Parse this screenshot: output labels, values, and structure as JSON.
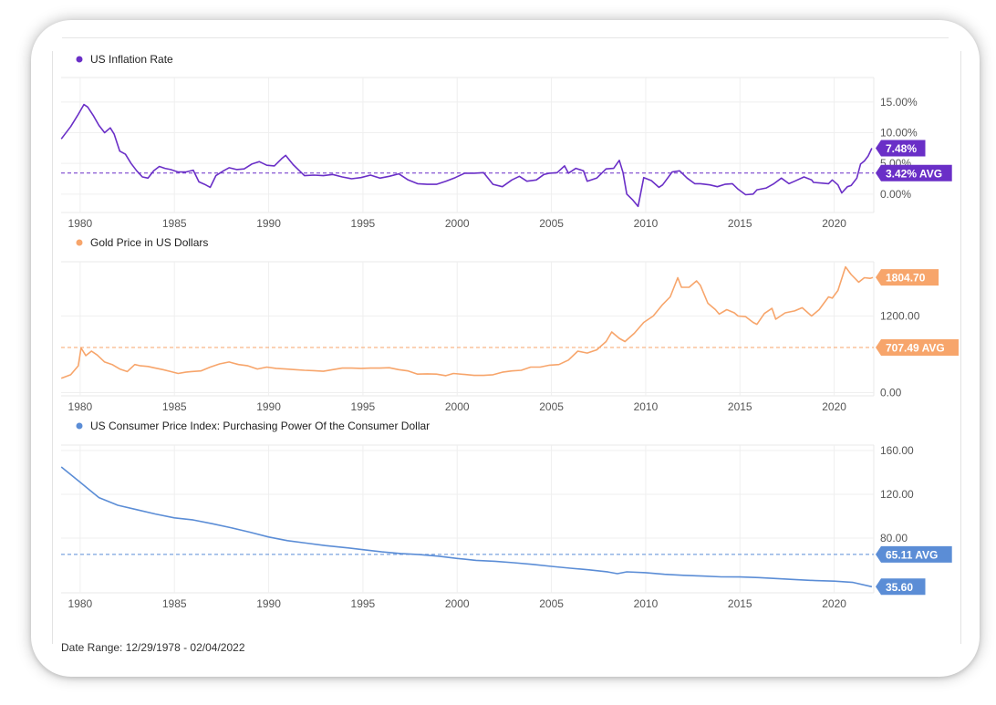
{
  "footer": {
    "date_range": "Date Range: 12/29/1978 - 02/04/2022"
  },
  "chart_data": [
    {
      "type": "line",
      "legend": "US Inflation Rate",
      "color": "#6a2fc7",
      "x_ticks": [
        "1980",
        "1985",
        "1990",
        "1995",
        "2000",
        "2005",
        "2010",
        "2015",
        "2020"
      ],
      "y_ticks": [
        "15.00%",
        "10.00%",
        "5.00%",
        "0.00%"
      ],
      "y_tick_values": [
        15,
        10,
        5,
        0
      ],
      "ylim": [
        -3,
        19
      ],
      "xlim": [
        1978.99,
        2022.1
      ],
      "grid": true,
      "avg": 3.42,
      "avg_label": "3.42% AVG",
      "last_label": "7.48%",
      "points": [
        [
          1979.0,
          9.0
        ],
        [
          1979.5,
          11.0
        ],
        [
          1979.9,
          13.0
        ],
        [
          1980.2,
          14.6
        ],
        [
          1980.4,
          14.2
        ],
        [
          1980.7,
          12.8
        ],
        [
          1981.0,
          11.2
        ],
        [
          1981.3,
          10.0
        ],
        [
          1981.6,
          10.8
        ],
        [
          1981.8,
          9.8
        ],
        [
          1982.1,
          7.0
        ],
        [
          1982.4,
          6.5
        ],
        [
          1982.7,
          5.0
        ],
        [
          1983.0,
          3.8
        ],
        [
          1983.3,
          2.8
        ],
        [
          1983.6,
          2.6
        ],
        [
          1983.9,
          3.8
        ],
        [
          1984.2,
          4.5
        ],
        [
          1984.5,
          4.2
        ],
        [
          1984.8,
          4.0
        ],
        [
          1985.2,
          3.6
        ],
        [
          1985.6,
          3.6
        ],
        [
          1986.0,
          3.9
        ],
        [
          1986.3,
          2.0
        ],
        [
          1986.6,
          1.6
        ],
        [
          1986.9,
          1.1
        ],
        [
          1987.2,
          3.0
        ],
        [
          1987.6,
          3.8
        ],
        [
          1987.9,
          4.3
        ],
        [
          1988.3,
          4.0
        ],
        [
          1988.7,
          4.1
        ],
        [
          1989.1,
          4.9
        ],
        [
          1989.5,
          5.3
        ],
        [
          1989.9,
          4.7
        ],
        [
          1990.3,
          4.6
        ],
        [
          1990.7,
          5.8
        ],
        [
          1990.9,
          6.3
        ],
        [
          1991.3,
          4.8
        ],
        [
          1991.6,
          3.9
        ],
        [
          1991.9,
          3.0
        ],
        [
          1992.4,
          3.1
        ],
        [
          1992.9,
          3.0
        ],
        [
          1993.4,
          3.2
        ],
        [
          1993.9,
          2.8
        ],
        [
          1994.4,
          2.5
        ],
        [
          1994.9,
          2.7
        ],
        [
          1995.4,
          3.1
        ],
        [
          1995.9,
          2.6
        ],
        [
          1996.4,
          2.9
        ],
        [
          1996.9,
          3.3
        ],
        [
          1997.4,
          2.3
        ],
        [
          1997.9,
          1.7
        ],
        [
          1998.4,
          1.6
        ],
        [
          1998.9,
          1.6
        ],
        [
          1999.4,
          2.1
        ],
        [
          1999.9,
          2.7
        ],
        [
          2000.4,
          3.4
        ],
        [
          2000.9,
          3.4
        ],
        [
          2001.4,
          3.5
        ],
        [
          2001.9,
          1.6
        ],
        [
          2002.4,
          1.2
        ],
        [
          2002.9,
          2.3
        ],
        [
          2003.3,
          2.9
        ],
        [
          2003.7,
          2.1
        ],
        [
          2004.2,
          2.3
        ],
        [
          2004.6,
          3.2
        ],
        [
          2004.9,
          3.4
        ],
        [
          2005.3,
          3.5
        ],
        [
          2005.7,
          4.6
        ],
        [
          2005.9,
          3.4
        ],
        [
          2006.3,
          4.2
        ],
        [
          2006.7,
          3.8
        ],
        [
          2006.9,
          2.1
        ],
        [
          2007.4,
          2.6
        ],
        [
          2007.9,
          4.1
        ],
        [
          2008.3,
          4.2
        ],
        [
          2008.6,
          5.5
        ],
        [
          2008.8,
          3.5
        ],
        [
          2009.0,
          0.0
        ],
        [
          2009.3,
          -0.9
        ],
        [
          2009.6,
          -2.0
        ],
        [
          2009.9,
          2.7
        ],
        [
          2010.3,
          2.2
        ],
        [
          2010.7,
          1.1
        ],
        [
          2010.9,
          1.5
        ],
        [
          2011.4,
          3.6
        ],
        [
          2011.8,
          3.8
        ],
        [
          2012.2,
          2.6
        ],
        [
          2012.6,
          1.7
        ],
        [
          2012.9,
          1.7
        ],
        [
          2013.4,
          1.5
        ],
        [
          2013.8,
          1.2
        ],
        [
          2014.2,
          1.6
        ],
        [
          2014.6,
          1.7
        ],
        [
          2014.9,
          0.8
        ],
        [
          2015.3,
          -0.1
        ],
        [
          2015.7,
          0.0
        ],
        [
          2015.9,
          0.7
        ],
        [
          2016.4,
          1.0
        ],
        [
          2016.8,
          1.7
        ],
        [
          2017.2,
          2.6
        ],
        [
          2017.6,
          1.7
        ],
        [
          2017.9,
          2.1
        ],
        [
          2018.4,
          2.8
        ],
        [
          2018.8,
          2.3
        ],
        [
          2018.9,
          1.9
        ],
        [
          2019.3,
          1.8
        ],
        [
          2019.7,
          1.7
        ],
        [
          2019.9,
          2.3
        ],
        [
          2020.2,
          1.5
        ],
        [
          2020.4,
          0.2
        ],
        [
          2020.7,
          1.2
        ],
        [
          2020.9,
          1.4
        ],
        [
          2021.2,
          2.6
        ],
        [
          2021.4,
          4.9
        ],
        [
          2021.6,
          5.4
        ],
        [
          2021.8,
          6.2
        ],
        [
          2022.0,
          7.48
        ]
      ]
    },
    {
      "type": "line",
      "legend": "Gold Price in US Dollars",
      "color": "#f7a56b",
      "x_ticks": [
        "1980",
        "1985",
        "1990",
        "1995",
        "2000",
        "2005",
        "2010",
        "2015",
        "2020"
      ],
      "y_ticks": [
        "1200.00",
        "0.00"
      ],
      "y_tick_values": [
        1200,
        0
      ],
      "ylim": [
        -50,
        2050
      ],
      "xlim": [
        1978.99,
        2022.1
      ],
      "grid": true,
      "avg": 707.49,
      "avg_label": "707.49 AVG",
      "last_label": "1804.70",
      "points": [
        [
          1979.0,
          226
        ],
        [
          1979.5,
          280
        ],
        [
          1979.9,
          420
        ],
        [
          1980.05,
          700
        ],
        [
          1980.3,
          580
        ],
        [
          1980.6,
          650
        ],
        [
          1980.9,
          590
        ],
        [
          1981.3,
          480
        ],
        [
          1981.7,
          440
        ],
        [
          1982.1,
          370
        ],
        [
          1982.5,
          330
        ],
        [
          1982.9,
          440
        ],
        [
          1983.2,
          420
        ],
        [
          1983.6,
          410
        ],
        [
          1983.9,
          390
        ],
        [
          1984.4,
          360
        ],
        [
          1984.8,
          330
        ],
        [
          1985.2,
          300
        ],
        [
          1985.6,
          320
        ],
        [
          1985.9,
          330
        ],
        [
          1986.4,
          340
        ],
        [
          1986.9,
          400
        ],
        [
          1987.4,
          450
        ],
        [
          1987.9,
          480
        ],
        [
          1988.4,
          440
        ],
        [
          1988.9,
          420
        ],
        [
          1989.4,
          370
        ],
        [
          1989.9,
          400
        ],
        [
          1990.4,
          380
        ],
        [
          1990.9,
          370
        ],
        [
          1991.4,
          360
        ],
        [
          1991.9,
          350
        ],
        [
          1992.4,
          345
        ],
        [
          1992.9,
          335
        ],
        [
          1993.4,
          360
        ],
        [
          1993.9,
          385
        ],
        [
          1994.4,
          385
        ],
        [
          1994.9,
          380
        ],
        [
          1995.4,
          385
        ],
        [
          1995.9,
          385
        ],
        [
          1996.4,
          390
        ],
        [
          1996.9,
          360
        ],
        [
          1997.4,
          340
        ],
        [
          1997.9,
          290
        ],
        [
          1998.4,
          295
        ],
        [
          1998.9,
          290
        ],
        [
          1999.4,
          265
        ],
        [
          1999.8,
          300
        ],
        [
          2000.4,
          285
        ],
        [
          2000.9,
          270
        ],
        [
          2001.4,
          270
        ],
        [
          2001.9,
          280
        ],
        [
          2002.4,
          320
        ],
        [
          2002.9,
          340
        ],
        [
          2003.4,
          350
        ],
        [
          2003.9,
          400
        ],
        [
          2004.4,
          400
        ],
        [
          2004.9,
          430
        ],
        [
          2005.4,
          440
        ],
        [
          2005.9,
          510
        ],
        [
          2006.4,
          650
        ],
        [
          2006.9,
          620
        ],
        [
          2007.4,
          670
        ],
        [
          2007.9,
          800
        ],
        [
          2008.2,
          950
        ],
        [
          2008.6,
          850
        ],
        [
          2008.9,
          800
        ],
        [
          2009.4,
          930
        ],
        [
          2009.9,
          1100
        ],
        [
          2010.4,
          1200
        ],
        [
          2010.9,
          1380
        ],
        [
          2011.3,
          1500
        ],
        [
          2011.7,
          1800
        ],
        [
          2011.9,
          1650
        ],
        [
          2012.3,
          1650
        ],
        [
          2012.7,
          1750
        ],
        [
          2012.9,
          1680
        ],
        [
          2013.3,
          1400
        ],
        [
          2013.7,
          1300
        ],
        [
          2013.9,
          1230
        ],
        [
          2014.3,
          1300
        ],
        [
          2014.7,
          1250
        ],
        [
          2014.9,
          1200
        ],
        [
          2015.3,
          1190
        ],
        [
          2015.7,
          1100
        ],
        [
          2015.9,
          1070
        ],
        [
          2016.3,
          1240
        ],
        [
          2016.7,
          1320
        ],
        [
          2016.9,
          1150
        ],
        [
          2017.4,
          1250
        ],
        [
          2017.9,
          1280
        ],
        [
          2018.3,
          1330
        ],
        [
          2018.8,
          1200
        ],
        [
          2019.2,
          1300
        ],
        [
          2019.7,
          1500
        ],
        [
          2019.9,
          1480
        ],
        [
          2020.2,
          1600
        ],
        [
          2020.6,
          1970
        ],
        [
          2020.9,
          1850
        ],
        [
          2021.3,
          1730
        ],
        [
          2021.6,
          1800
        ],
        [
          2021.9,
          1790
        ],
        [
          2022.05,
          1804.7
        ]
      ]
    },
    {
      "type": "line",
      "legend": "US Consumer Price Index: Purchasing Power Of the Consumer Dollar",
      "color": "#5b8dd6",
      "x_ticks": [
        "1980",
        "1985",
        "1990",
        "1995",
        "2000",
        "2005",
        "2010",
        "2015",
        "2020"
      ],
      "y_ticks": [
        "160.00",
        "120.00",
        "80.00"
      ],
      "y_tick_values": [
        160,
        120,
        80
      ],
      "ylim": [
        30,
        165
      ],
      "xlim": [
        1978.99,
        2022.1
      ],
      "grid": true,
      "avg": 65.11,
      "avg_label": "65.11 AVG",
      "last_label": "35.60",
      "points": [
        [
          1979.0,
          145
        ],
        [
          1980.0,
          131
        ],
        [
          1980.5,
          124
        ],
        [
          1981.0,
          117
        ],
        [
          1982.0,
          110
        ],
        [
          1983.0,
          106
        ],
        [
          1984.0,
          102
        ],
        [
          1985.0,
          98.5
        ],
        [
          1986.0,
          96.6
        ],
        [
          1987.0,
          93.2
        ],
        [
          1988.0,
          89.5
        ],
        [
          1989.0,
          85.4
        ],
        [
          1990.0,
          81.0
        ],
        [
          1991.0,
          77.7
        ],
        [
          1992.0,
          75.4
        ],
        [
          1993.0,
          73.2
        ],
        [
          1994.0,
          71.4
        ],
        [
          1995.0,
          69.4
        ],
        [
          1996.0,
          67.4
        ],
        [
          1997.0,
          65.9
        ],
        [
          1998.0,
          64.9
        ],
        [
          1999.0,
          63.5
        ],
        [
          2000.0,
          61.4
        ],
        [
          2001.0,
          59.7
        ],
        [
          2002.0,
          58.8
        ],
        [
          2003.0,
          57.5
        ],
        [
          2004.0,
          56.0
        ],
        [
          2005.0,
          54.2
        ],
        [
          2006.0,
          52.5
        ],
        [
          2007.0,
          51.0
        ],
        [
          2008.0,
          49.1
        ],
        [
          2008.5,
          47.5
        ],
        [
          2009.0,
          49.2
        ],
        [
          2010.0,
          48.4
        ],
        [
          2011.0,
          46.9
        ],
        [
          2012.0,
          46.0
        ],
        [
          2013.0,
          45.3
        ],
        [
          2014.0,
          44.6
        ],
        [
          2015.0,
          44.5
        ],
        [
          2016.0,
          43.9
        ],
        [
          2017.0,
          43.0
        ],
        [
          2018.0,
          42.0
        ],
        [
          2019.0,
          41.2
        ],
        [
          2020.0,
          40.7
        ],
        [
          2021.0,
          39.5
        ],
        [
          2022.0,
          35.6
        ]
      ]
    }
  ]
}
